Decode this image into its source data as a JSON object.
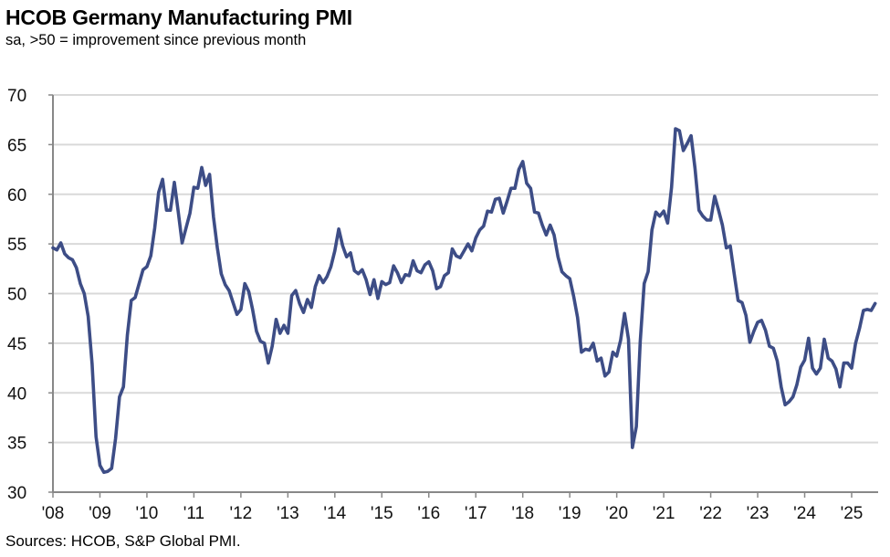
{
  "chart_data": {
    "type": "line",
    "title": "HCOB Germany Manufacturing PMI",
    "subtitle": "sa, >50 = improvement since previous month",
    "source": "Sources: HCOB, S&P Global PMI.",
    "xlabel": "",
    "ylabel": "",
    "ylim": [
      30,
      70
    ],
    "yticks": [
      "30",
      "35",
      "40",
      "45",
      "50",
      "55",
      "60",
      "65",
      "70"
    ],
    "xticks": [
      "'08",
      "'09",
      "'10",
      "'11",
      "'12",
      "'13",
      "'14",
      "'15",
      "'16",
      "'17",
      "'18",
      "'19",
      "'20",
      "'21",
      "'22",
      "'23",
      "'24",
      "'25"
    ],
    "grid": "horizontal",
    "line_color": "#3d4d86",
    "series": [
      {
        "frequency": "monthly",
        "values_by_year": {
          "2008": [
            54.6,
            54.4,
            55.1,
            54.0,
            53.6,
            53.4,
            52.6,
            51.0,
            50.0,
            47.7,
            42.9,
            35.6
          ],
          "2009": [
            32.7,
            32.0,
            32.1,
            32.4,
            35.4,
            39.6,
            40.6,
            45.8,
            49.3,
            49.6,
            51.0,
            52.4
          ],
          "2010": [
            52.7,
            53.8,
            56.6,
            60.2,
            61.5,
            58.4,
            58.4,
            61.2,
            58.2,
            55.1,
            56.6,
            58.1
          ],
          "2011": [
            60.7,
            60.6,
            62.7,
            60.9,
            62.0,
            57.7,
            54.6,
            52.0,
            50.9,
            50.3,
            49.1,
            47.9
          ],
          "2012": [
            48.4,
            51.0,
            50.2,
            48.4,
            46.2,
            45.2,
            45.0,
            43.0,
            44.7,
            47.4,
            46.0,
            46.8
          ],
          "2013": [
            46.0,
            49.8,
            50.3,
            49.0,
            48.1,
            49.4,
            48.6,
            50.7,
            51.8,
            51.1,
            51.7,
            52.7
          ],
          "2014": [
            54.3,
            56.5,
            54.8,
            53.7,
            54.1,
            52.3,
            52.0,
            52.4,
            51.4,
            49.9,
            51.4,
            49.5
          ],
          "2015": [
            51.2,
            50.9,
            51.1,
            52.8,
            52.1,
            51.1,
            51.9,
            51.8,
            53.3,
            52.3,
            52.1,
            52.9
          ],
          "2016": [
            53.2,
            52.3,
            50.5,
            50.7,
            51.8,
            52.1,
            54.5,
            53.8,
            53.6,
            54.3,
            55.0,
            54.3
          ],
          "2017": [
            55.6,
            56.4,
            56.8,
            58.3,
            58.2,
            59.5,
            59.6,
            58.1,
            59.3,
            60.6,
            60.6,
            62.5
          ],
          "2018": [
            63.3,
            61.1,
            60.6,
            58.2,
            58.1,
            56.9,
            55.9,
            56.9,
            55.9,
            53.7,
            52.2,
            51.8
          ],
          "2019": [
            51.5,
            49.7,
            47.6,
            44.1,
            44.4,
            44.3,
            45.0,
            43.2,
            43.5,
            41.7,
            42.1,
            44.1
          ],
          "2020": [
            43.7,
            45.3,
            48.0,
            45.4,
            34.5,
            36.6,
            45.2,
            51.0,
            52.2,
            56.4,
            58.2,
            57.8
          ],
          "2021": [
            58.3,
            57.1,
            60.7,
            66.6,
            66.4,
            64.4,
            65.1,
            65.9,
            62.6,
            58.4,
            57.8,
            57.4
          ],
          "2022": [
            57.4,
            59.8,
            58.4,
            56.9,
            54.6,
            54.8,
            52.0,
            49.3,
            49.1,
            47.8,
            45.1,
            46.2
          ],
          "2023": [
            47.1,
            47.3,
            46.3,
            44.7,
            44.5,
            43.2,
            40.6,
            38.8,
            39.1,
            39.6,
            40.8,
            42.6
          ],
          "2024": [
            43.3,
            45.5,
            42.5,
            41.9,
            42.5,
            45.4,
            43.5,
            43.2,
            42.4,
            40.6,
            43.0,
            43.0
          ],
          "2025": [
            42.5,
            45.0,
            46.5,
            48.3,
            48.4,
            48.3,
            49.0
          ]
        }
      }
    ]
  }
}
